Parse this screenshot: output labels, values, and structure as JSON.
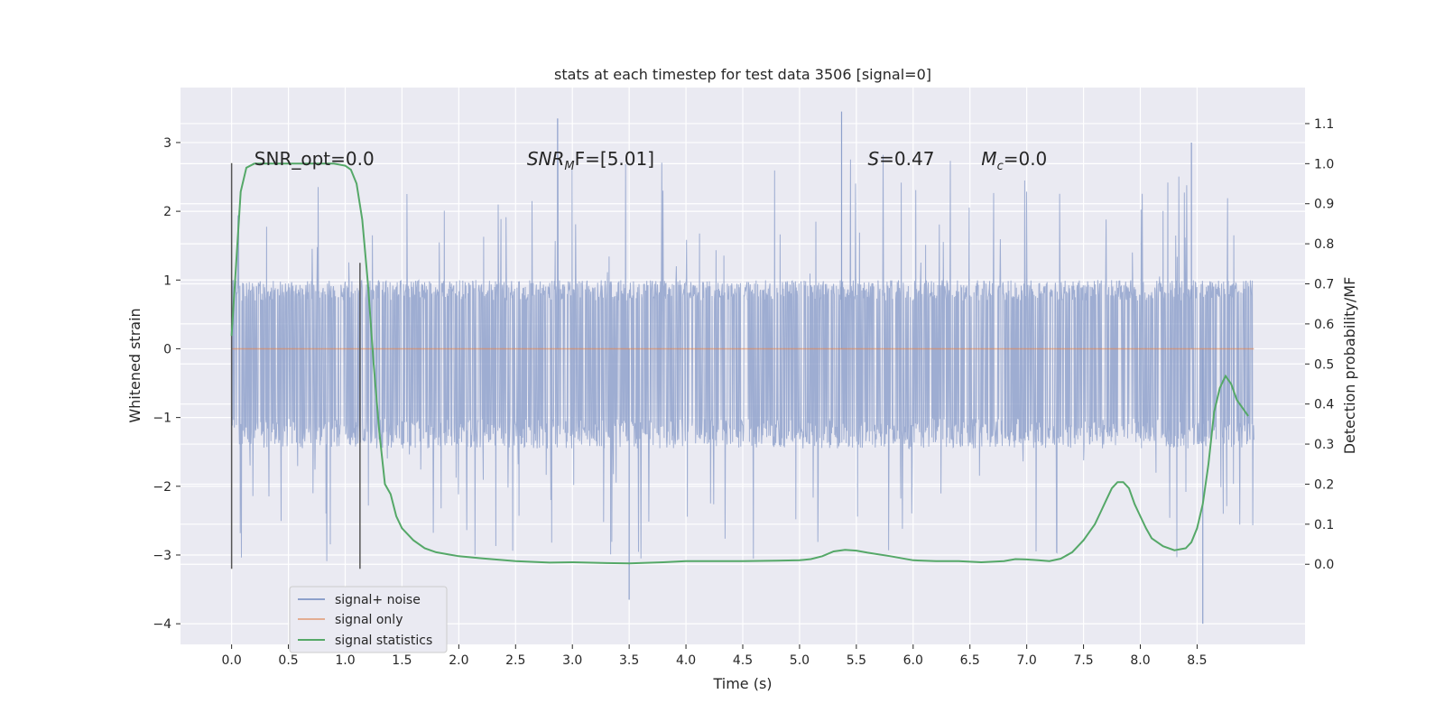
{
  "chart_data": {
    "type": "line",
    "title": "stats at each timestep for test data 3506 [signal=0]",
    "xlabel": "Time (s)",
    "ylabel": "Whitened strain",
    "ylabel_right": "Detection probability/MF",
    "xlim": [
      -0.45,
      9.45
    ],
    "ylim": [
      -4.3,
      3.8
    ],
    "ylim_right": [
      -0.2,
      1.19
    ],
    "x_ticks": [
      "0.0",
      "0.5",
      "1.0",
      "1.5",
      "2.0",
      "2.5",
      "3.0",
      "3.5",
      "4.0",
      "4.5",
      "5.0",
      "5.5",
      "6.0",
      "6.5",
      "7.0",
      "7.5",
      "8.0",
      "8.5"
    ],
    "y_ticks": [
      "3",
      "2",
      "1",
      "0",
      "−1",
      "−2",
      "−3",
      "−4"
    ],
    "y_ticks_right": [
      "0.0",
      "0.1",
      "0.2",
      "0.3",
      "0.4",
      "0.5",
      "0.6",
      "0.7",
      "0.8",
      "0.9",
      "1.0",
      "1.1"
    ],
    "grid": true,
    "legend_position": "bottom-left",
    "annotations": {
      "snr_opt": "SNR_opt=0.0",
      "snr_mf_name": "SNR",
      "snr_mf_sub": "M",
      "snr_mf_rest": "F=[5.01]",
      "s_name": "S",
      "s_rest": "=0.47",
      "mc_name": "M",
      "mc_sub": "c",
      "mc_rest": "=0.0"
    },
    "series": [
      {
        "name": "signal+ noise",
        "axis": "left",
        "color": "#8da0cb",
        "x_range": [
          0.0,
          9.0
        ],
        "envelope_upper": 1.0,
        "envelope_lower": -1.45,
        "spike_max": 3.45,
        "spike_min": -4.0
      },
      {
        "name": "signal only",
        "axis": "left",
        "color": "#dd8452",
        "x": [
          0.0,
          9.0
        ],
        "values": [
          0.0,
          0.0
        ]
      },
      {
        "name": "signal statistics",
        "axis": "right",
        "color": "#55a868",
        "x": [
          0.0,
          0.08,
          0.13,
          0.2,
          0.3,
          0.4,
          0.5,
          0.6,
          0.7,
          0.8,
          0.9,
          1.0,
          1.05,
          1.1,
          1.15,
          1.2,
          1.25,
          1.3,
          1.35,
          1.4,
          1.45,
          1.5,
          1.6,
          1.7,
          1.8,
          1.9,
          2.0,
          2.2,
          2.5,
          2.8,
          3.0,
          3.3,
          3.5,
          3.8,
          4.0,
          4.2,
          4.5,
          4.8,
          5.0,
          5.1,
          5.2,
          5.3,
          5.4,
          5.5,
          5.6,
          5.8,
          6.0,
          6.2,
          6.4,
          6.6,
          6.8,
          6.9,
          7.0,
          7.1,
          7.2,
          7.3,
          7.4,
          7.5,
          7.6,
          7.65,
          7.7,
          7.75,
          7.8,
          7.85,
          7.9,
          7.95,
          8.0,
          8.05,
          8.1,
          8.2,
          8.3,
          8.4,
          8.45,
          8.5,
          8.55,
          8.6,
          8.65,
          8.7,
          8.75,
          8.8,
          8.85,
          8.9,
          8.95
        ],
        "values": [
          0.57,
          0.93,
          0.99,
          1.0,
          1.0,
          1.0,
          1.0,
          1.0,
          1.0,
          1.0,
          1.0,
          0.995,
          0.985,
          0.95,
          0.86,
          0.7,
          0.5,
          0.33,
          0.2,
          0.175,
          0.12,
          0.09,
          0.06,
          0.04,
          0.03,
          0.025,
          0.02,
          0.015,
          0.008,
          0.004,
          0.005,
          0.003,
          0.002,
          0.005,
          0.008,
          0.008,
          0.008,
          0.009,
          0.01,
          0.013,
          0.02,
          0.032,
          0.036,
          0.034,
          0.029,
          0.02,
          0.01,
          0.008,
          0.008,
          0.005,
          0.008,
          0.013,
          0.012,
          0.01,
          0.008,
          0.014,
          0.03,
          0.06,
          0.1,
          0.13,
          0.16,
          0.19,
          0.205,
          0.205,
          0.19,
          0.15,
          0.12,
          0.09,
          0.065,
          0.045,
          0.035,
          0.04,
          0.055,
          0.09,
          0.15,
          0.25,
          0.38,
          0.44,
          0.47,
          0.45,
          0.41,
          0.39,
          0.37
        ]
      }
    ],
    "markers": [
      {
        "x": 0.0,
        "y_range": [
          -3.2,
          2.7
        ]
      },
      {
        "x": 1.13,
        "y_range": [
          -3.2,
          1.25
        ]
      }
    ]
  }
}
